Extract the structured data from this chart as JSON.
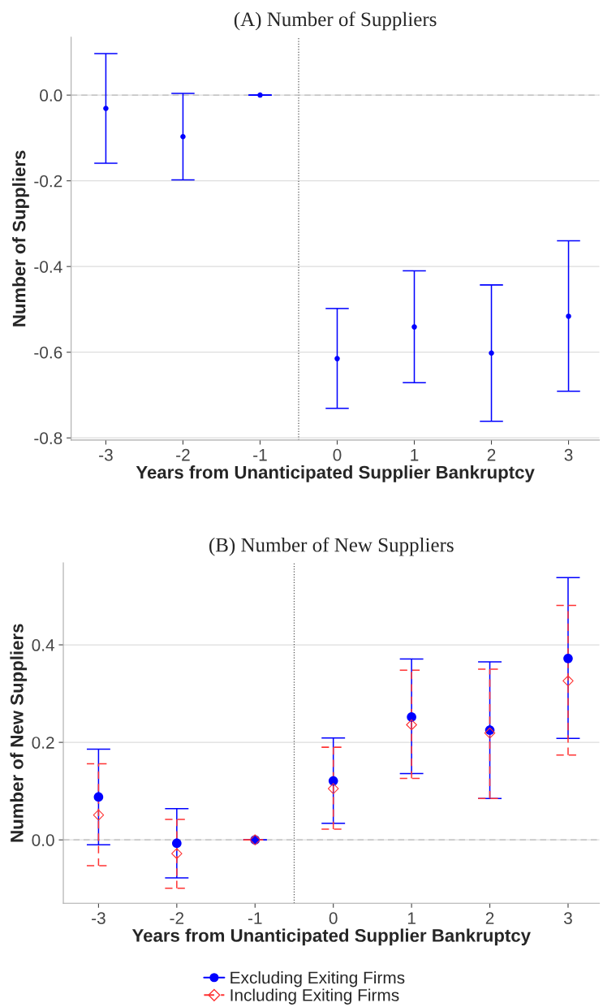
{
  "chart_data": [
    {
      "type": "scatter",
      "title": "(A) Number of Suppliers",
      "xlabel": "Years from Unanticipated Supplier Bankruptcy",
      "ylabel": "Number of Suppliers",
      "x": [
        -3,
        -2,
        -1,
        0,
        1,
        2,
        3
      ],
      "xlim": [
        -3.45,
        3.4
      ],
      "xticks": [
        -3,
        -2,
        -1,
        0,
        1,
        2,
        3
      ],
      "ylim": [
        -0.805,
        0.135
      ],
      "yticks": [
        {
          "value": -0.8,
          "label": "-0.8"
        },
        {
          "value": -0.6,
          "label": "-0.6"
        },
        {
          "value": -0.4,
          "label": "-0.4"
        },
        {
          "value": -0.2,
          "label": "-0.2"
        },
        {
          "value": 0.0,
          "label": "0.0"
        }
      ],
      "grid": "y",
      "marker": "circle",
      "line_style": "solid",
      "ref_lines": [
        {
          "axis": "x",
          "value": -0.5,
          "color": "#555555",
          "line_style": "dotted"
        },
        {
          "axis": "y",
          "value": 0,
          "color": "#bbbbbb",
          "line_style": "dashed"
        }
      ],
      "series": [
        {
          "color": "#0000ff",
          "values": [
            -0.031,
            -0.097,
            0,
            -0.615,
            -0.541,
            -0.602,
            -0.516
          ],
          "errors": [
            [
              -0.159,
              0.097
            ],
            [
              -0.198,
              0.004
            ],
            [
              0,
              0
            ],
            [
              -0.731,
              -0.498
            ],
            [
              -0.671,
              -0.41
            ],
            [
              -0.761,
              -0.443
            ],
            [
              -0.691,
              -0.34
            ]
          ]
        }
      ]
    },
    {
      "type": "scatter",
      "title": "(B) Number of New Suppliers",
      "xlabel": "Years from Unanticipated Supplier Bankruptcy",
      "ylabel": "Number of New Suppliers",
      "x": [
        -3,
        -2,
        -1,
        0,
        1,
        2,
        3
      ],
      "xlim": [
        -3.45,
        3.4
      ],
      "xticks": [
        -3,
        -2,
        -1,
        0,
        1,
        2,
        3
      ],
      "ylim": [
        -0.13,
        0.568
      ],
      "yticks": [
        {
          "value": 0.0,
          "label": "0.0"
        },
        {
          "value": 0.2,
          "label": "0.2"
        },
        {
          "value": 0.4,
          "label": "0.4"
        }
      ],
      "grid": "y",
      "legend": "bottom",
      "ref_lines": [
        {
          "axis": "x",
          "value": -0.5,
          "color": "#555555",
          "line_style": "dotted"
        },
        {
          "axis": "y",
          "value": 0,
          "color": "#bbbbbb",
          "line_style": "dashed"
        }
      ],
      "series": [
        {
          "name": "Excluding Exiting Firms",
          "color": "#0000ff",
          "marker": "circle",
          "line_style": "solid",
          "values": [
            0.088,
            -0.007,
            0,
            0.121,
            0.252,
            0.225,
            0.372
          ],
          "errors": [
            [
              -0.01,
              0.186
            ],
            [
              -0.078,
              0.064
            ],
            [
              0,
              0
            ],
            [
              0.034,
              0.209
            ],
            [
              0.136,
              0.371
            ],
            [
              0.085,
              0.365
            ],
            [
              0.208,
              0.538
            ]
          ]
        },
        {
          "name": "Including Exiting Firms",
          "color": "#ff3333",
          "marker": "diamond",
          "line_style": "dashed",
          "values": [
            0.051,
            -0.028,
            0,
            0.105,
            0.236,
            0.219,
            0.326
          ],
          "errors": [
            [
              -0.053,
              0.156
            ],
            [
              -0.099,
              0.042
            ],
            [
              0,
              0
            ],
            [
              0.022,
              0.19
            ],
            [
              0.126,
              0.348
            ],
            [
              0.085,
              0.35
            ],
            [
              0.174,
              0.481
            ]
          ]
        }
      ]
    }
  ]
}
